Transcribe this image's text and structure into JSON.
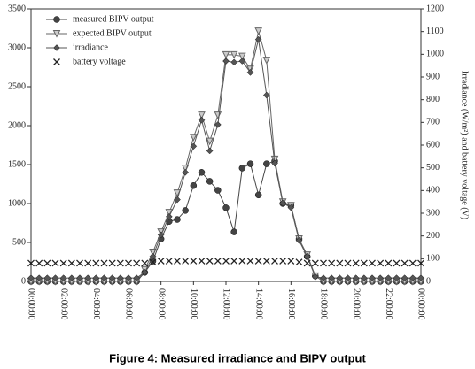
{
  "chart_data": {
    "type": "line",
    "caption": "Figure 4: Measured irradiance and BIPV output",
    "y2label": "Irradiance (W/m²) and battery voltage (V)",
    "x": [
      0,
      0.5,
      1,
      1.5,
      2,
      2.5,
      3,
      3.5,
      4,
      4.5,
      5,
      5.5,
      6,
      6.5,
      7,
      7.5,
      8,
      8.5,
      9,
      9.5,
      10,
      10.5,
      11,
      11.5,
      12,
      12.5,
      13,
      13.5,
      14,
      14.5,
      15,
      15.5,
      16,
      16.5,
      17,
      17.5,
      18,
      18.5,
      19,
      19.5,
      20,
      20.5,
      21,
      21.5,
      22,
      22.5,
      23,
      23.5,
      24
    ],
    "xlim": [
      0,
      24
    ],
    "xticks": [
      {
        "value": 0,
        "label": "00:00:00"
      },
      {
        "value": 2,
        "label": "02:00:00"
      },
      {
        "value": 4,
        "label": "04:00:00"
      },
      {
        "value": 6,
        "label": "06:00:00"
      },
      {
        "value": 8,
        "label": "08:00:00"
      },
      {
        "value": 10,
        "label": "10:00:00"
      },
      {
        "value": 12,
        "label": "12:00:00"
      },
      {
        "value": 14,
        "label": "14:00:00"
      },
      {
        "value": 16,
        "label": "16:00:00"
      },
      {
        "value": 18,
        "label": "18:00:00"
      },
      {
        "value": 20,
        "label": "20:00:00"
      },
      {
        "value": 22,
        "label": "22:00:00"
      },
      {
        "value": 24,
        "label": "00:00:00"
      }
    ],
    "ylim": [
      0,
      3500
    ],
    "yticks": [
      0,
      500,
      1000,
      1500,
      2000,
      2500,
      3000,
      3500
    ],
    "y2lim": [
      0,
      1200
    ],
    "y2ticks": [
      0,
      100,
      200,
      300,
      400,
      500,
      600,
      700,
      800,
      900,
      1000,
      1100,
      1200
    ],
    "series": [
      {
        "name": "measured BIPV output",
        "color": "#444444",
        "marker": "circle",
        "values": [
          0,
          0,
          0,
          0,
          0,
          0,
          0,
          0,
          0,
          0,
          0,
          0,
          0,
          0,
          115,
          260,
          545,
          770,
          795,
          910,
          1230,
          1400,
          1285,
          1170,
          945,
          635,
          1455,
          1510,
          1110,
          1510,
          1545,
          1000,
          975,
          545,
          320,
          70,
          0,
          0,
          0,
          0,
          0,
          0,
          0,
          0,
          0,
          0,
          0,
          0,
          0
        ]
      },
      {
        "name": "expected BIPV output",
        "color": "#666666",
        "marker": "triangle",
        "values": [
          0,
          0,
          0,
          0,
          0,
          0,
          0,
          0,
          0,
          0,
          0,
          0,
          0,
          0,
          150,
          375,
          635,
          885,
          1135,
          1455,
          1850,
          2135,
          1800,
          2135,
          2910,
          2910,
          2890,
          2725,
          3215,
          2840,
          1570,
          1020,
          975,
          545,
          340,
          70,
          0,
          0,
          0,
          0,
          0,
          0,
          0,
          0,
          0,
          0,
          0,
          0,
          0
        ]
      },
      {
        "name": "irradiance",
        "color": "#555555",
        "marker": "diamond",
        "axis": "y2",
        "values": [
          15,
          15,
          15,
          15,
          15,
          15,
          15,
          15,
          15,
          15,
          15,
          15,
          15,
          15,
          40,
          110,
          205,
          285,
          360,
          480,
          595,
          710,
          575,
          690,
          970,
          965,
          970,
          920,
          1065,
          820,
          520,
          345,
          325,
          180,
          110,
          20,
          15,
          15,
          15,
          15,
          15,
          15,
          15,
          15,
          15,
          15,
          15,
          15,
          15
        ]
      },
      {
        "name": "battery voltage",
        "color": "#222222",
        "marker": "x",
        "axis": "y2",
        "values": [
          80,
          80,
          80,
          80,
          80,
          80,
          80,
          80,
          80,
          80,
          80,
          80,
          80,
          80,
          80,
          85,
          90,
          90,
          90,
          90,
          90,
          90,
          90,
          90,
          90,
          90,
          90,
          90,
          90,
          90,
          90,
          90,
          90,
          85,
          80,
          80,
          80,
          80,
          80,
          80,
          80,
          80,
          80,
          80,
          80,
          80,
          80,
          80,
          80
        ]
      }
    ]
  }
}
